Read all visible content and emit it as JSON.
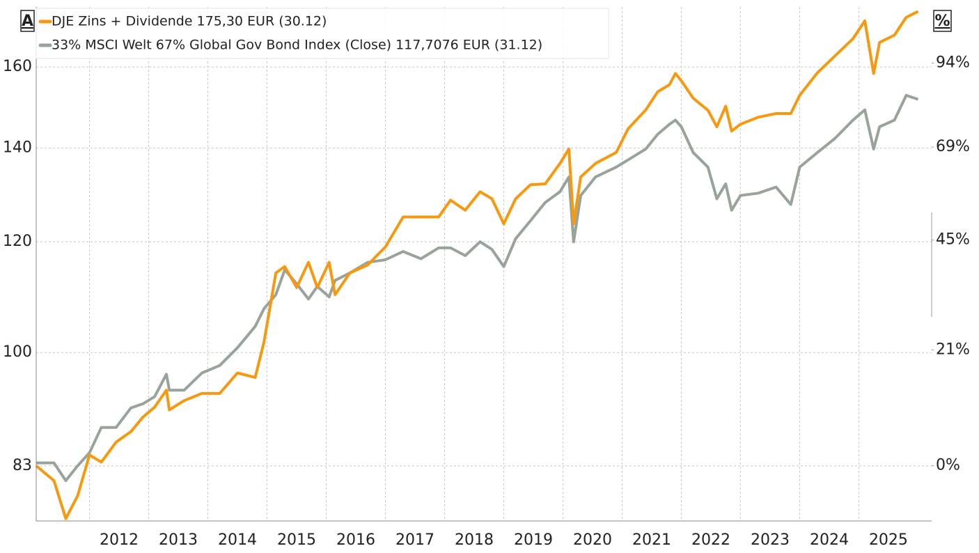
{
  "chart_data": {
    "type": "line",
    "left_axis_label": "A",
    "right_axis_label": "%",
    "x": [
      2011.1,
      2011.4,
      2011.6,
      2011.8,
      2012.0,
      2012.2,
      2012.45,
      2012.7,
      2012.9,
      2013.1,
      2013.3,
      2013.35,
      2013.6,
      2013.9,
      2014.2,
      2014.5,
      2014.8,
      2014.95,
      2015.15,
      2015.3,
      2015.5,
      2015.7,
      2015.85,
      2016.05,
      2016.15,
      2016.4,
      2016.7,
      2017.0,
      2017.3,
      2017.6,
      2017.9,
      2018.1,
      2018.35,
      2018.6,
      2018.8,
      2019.0,
      2019.2,
      2019.45,
      2019.7,
      2019.95,
      2020.1,
      2020.18,
      2020.3,
      2020.55,
      2020.9,
      2021.1,
      2021.4,
      2021.6,
      2021.8,
      2021.9,
      2022.0,
      2022.2,
      2022.45,
      2022.6,
      2022.75,
      2022.85,
      2023.0,
      2023.3,
      2023.6,
      2023.85,
      2024.0,
      2024.3,
      2024.6,
      2024.9,
      2025.1,
      2025.25,
      2025.35,
      2025.6,
      2025.8,
      2026.0
    ],
    "series": [
      {
        "name": "DJE Zins + Dividende 175,30 EUR (30.12)",
        "color": "#f7990f",
        "values": [
          83,
          81,
          76.1,
          79,
          84.5,
          83.5,
          86.3,
          87.8,
          89.9,
          91.4,
          94,
          91,
          92.4,
          93.5,
          93.5,
          96.7,
          96,
          101.8,
          114,
          115.2,
          111.3,
          116,
          111.3,
          116,
          110,
          114,
          115.5,
          119,
          125,
          125,
          125,
          128.5,
          126.4,
          130.3,
          128.8,
          123.6,
          128.8,
          131.8,
          132,
          136.5,
          139.8,
          123.6,
          133.5,
          136.5,
          139,
          144.5,
          149.1,
          153.6,
          155.4,
          158.3,
          156.4,
          152,
          149,
          145,
          150,
          144,
          145.6,
          147.3,
          148.2,
          148.2,
          152.7,
          158.5,
          163,
          167.6,
          172.6,
          158.3,
          166.6,
          168.6,
          173.6,
          175.3
        ]
      },
      {
        "name": "33% MSCI Welt 67% Global Gov Bond Index (Close) 117,7076 EUR (31.12)",
        "color": "#98a39a",
        "values": [
          83.4,
          83.4,
          81,
          83,
          84.8,
          88.4,
          88.4,
          91.3,
          91.9,
          93,
          96.5,
          94,
          94,
          96.7,
          97.9,
          100.8,
          104.4,
          107.5,
          110,
          114.6,
          112,
          109.2,
          111.5,
          109.6,
          112.6,
          114,
          116,
          116.5,
          118.1,
          116.7,
          118.8,
          118.8,
          117.3,
          120,
          118.5,
          115.2,
          120.6,
          124.2,
          128,
          130.3,
          133.5,
          120,
          129.5,
          133.5,
          135.7,
          137.3,
          139.8,
          143.2,
          145.6,
          146.6,
          145,
          139,
          135.7,
          128.8,
          132,
          126.4,
          129.5,
          130,
          131.3,
          127.6,
          135.7,
          139,
          142.3,
          146.6,
          149.1,
          139.8,
          145,
          146.6,
          152.7,
          151.7
        ]
      }
    ],
    "xlim": [
      2011.1,
      2026.23
    ],
    "xticks": [
      2012,
      2013,
      2014,
      2015,
      2016,
      2017,
      2018,
      2019,
      2020,
      2021,
      2022,
      2023,
      2024,
      2025
    ],
    "ylim": [
      75.8,
      176.6
    ],
    "yticks": [
      83,
      100,
      120,
      140,
      160
    ],
    "y2lim": [
      -8.7,
      112.8
    ],
    "y2ticks": [
      {
        "value": 0,
        "label": "0%"
      },
      {
        "value": 21,
        "label": "21%"
      },
      {
        "value": 45,
        "label": "45%"
      },
      {
        "value": 69,
        "label": "69%"
      },
      {
        "value": 94,
        "label": "94%"
      }
    ],
    "log_scale": true,
    "grid": true
  }
}
